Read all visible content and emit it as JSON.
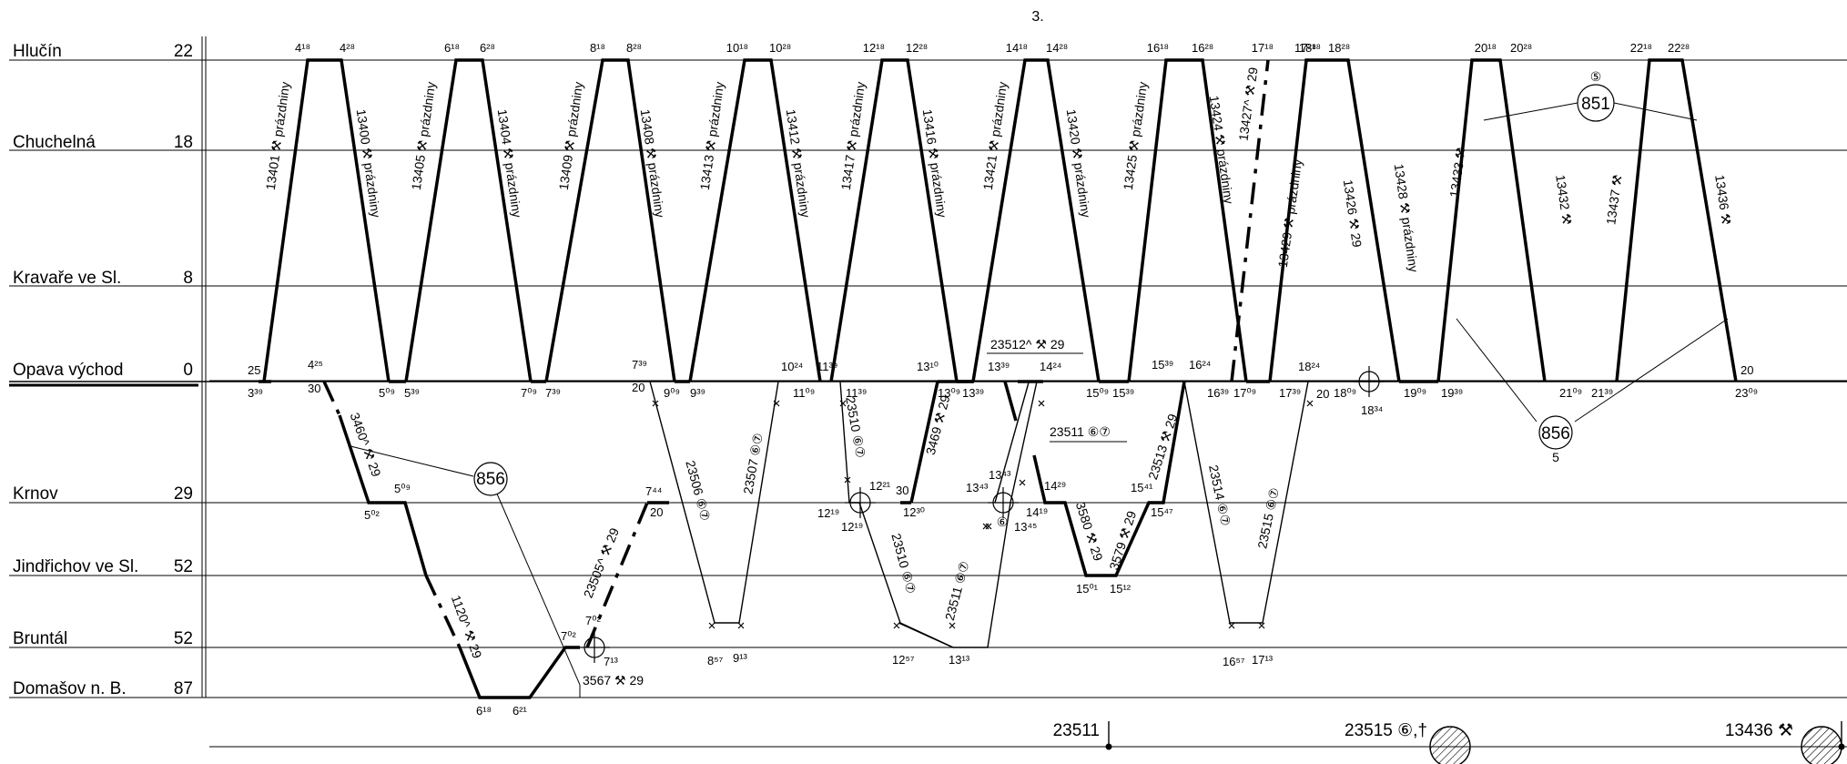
{
  "page_number": "3.",
  "stations": [
    {
      "name": "Hlučín",
      "km": "22"
    },
    {
      "name": "Chuchelná",
      "km": "18"
    },
    {
      "name": "Kravaře ve Sl.",
      "km": "8"
    },
    {
      "name": "Opava východ",
      "km": "0"
    },
    {
      "name": "Krnov",
      "km": "29"
    },
    {
      "name": "Jindřichov ve Sl.",
      "km": "52"
    },
    {
      "name": "Bruntál",
      "km": "52"
    },
    {
      "name": "Domašov n. B.",
      "km": "87"
    }
  ],
  "hlucin_times": [
    "4¹⁸",
    "4²⁸",
    "6¹⁸",
    "6²⁸",
    "8¹⁸",
    "8²⁸",
    "10¹⁸",
    "10²⁸",
    "12¹⁸",
    "12²⁸",
    "14¹⁸",
    "14²⁸",
    "16¹⁸",
    "16²⁸",
    "17¹⁸",
    "17²⁸",
    "18¹⁸",
    "18²⁸",
    "20¹⁸",
    "20²⁸",
    "22¹⁸",
    "22²⁸"
  ],
  "opava_upper_times": [
    "25",
    "4²⁵",
    "7³⁹",
    "10²⁴",
    "11³⁹",
    "13¹⁰",
    "13³⁹",
    "14²⁴",
    "15³⁹",
    "16²⁴",
    "18²⁴",
    "20"
  ],
  "opava_lower_times": [
    "3³⁹",
    "30",
    "5⁰⁹",
    "5³⁹",
    "7⁰⁹",
    "7³⁹",
    "20",
    "9⁰⁹",
    "9³⁹",
    "11⁰⁹",
    "11³⁹",
    "13⁰⁹",
    "13³⁹",
    "15⁰⁹",
    "15³⁹",
    "16³⁹",
    "17⁰⁹",
    "17³⁹",
    "20",
    "18⁰⁹",
    "18³⁴",
    "19⁰⁹",
    "19³⁹",
    "21⁰⁹",
    "21³⁹",
    "23⁰⁹"
  ],
  "krnov_times": [
    "5⁰⁹",
    "5⁰²",
    "7⁴⁴",
    "20",
    "12²¹",
    "12¹⁹",
    "12¹⁹",
    "30",
    "12³⁰",
    "13⁴³",
    "13⁴³",
    "13⁴⁵",
    "14¹⁹",
    "14²⁹",
    "15⁴¹",
    "15⁴⁷"
  ],
  "lower_times": [
    "15⁰¹",
    "15¹²",
    "7⁰²",
    "7⁰²",
    "7¹³",
    "8⁵⁷",
    "9¹³",
    "12⁵⁷",
    "13¹³",
    "16⁵⁷",
    "17¹³",
    "6¹⁸",
    "6²¹"
  ],
  "train_labels": {
    "n13401": "13401 ⚒ prázdniny",
    "n13400": "13400 ⚒ prázdniny",
    "n13405": "13405 ⚒ prázdniny",
    "n13404": "13404 ⚒ prázdniny",
    "n13409": "13409 ⚒ prázdniny",
    "n13408": "13408 ⚒ prázdniny",
    "n13413": "13413 ⚒ prázdniny",
    "n13412": "13412 ⚒ prázdniny",
    "n13417": "13417 ⚒ prázdniny",
    "n13416": "13416 ⚒ prázdniny",
    "n13421": "13421 ⚒ prázdniny",
    "n13420": "13420 ⚒ prázdniny",
    "n13425": "13425 ⚒ prázdniny",
    "n13424": "13424 ⚒ prázdniny",
    "n13427": "13427^ ⚒ 29",
    "n13429": "13429 ⚒ prázdniny",
    "n13426": "13426 ⚒ 29",
    "n13428": "13428 ⚒ prázdniny",
    "n13433": "13433 ⚒",
    "n13432": "13432 ⚒",
    "n13437": "13437 ⚒",
    "n13436": "13436 ⚒",
    "n3460": "3460^ ⚒ 29",
    "n1120": "1120^ ⚒ 29",
    "n23505": "23505^ ⚒ 29",
    "n23506": "23506 ⑥⑦",
    "n23507": "23507 ⑥⑦",
    "n23510a": "23510 ⑥⑦",
    "n23510b": "23510 ⑥⑦",
    "n3469": "3469 ⚒ 29",
    "n23511": "23511 ⑥⑦",
    "n23512": "23512^ ⚒ 29",
    "n23511b": "23511 ⑥⑦",
    "n3580": "3580 ⚒ 29",
    "n3579": "3579 ⚒ 29",
    "n23513": "23513 ⚒ 29",
    "n23514": "23514 ⑥⑦",
    "n23515": "23515 ⑥⑦",
    "n3567": "3567 ⚒ 29"
  },
  "circles": {
    "c856a": "856",
    "c851": "851",
    "c851sup": "⑤",
    "c856b": "856",
    "c856bsub": "5",
    "c6": "⑥"
  },
  "footer": {
    "f1": "23511",
    "f2": "23515 ⑥,†",
    "f3": "13436 ⚒"
  }
}
